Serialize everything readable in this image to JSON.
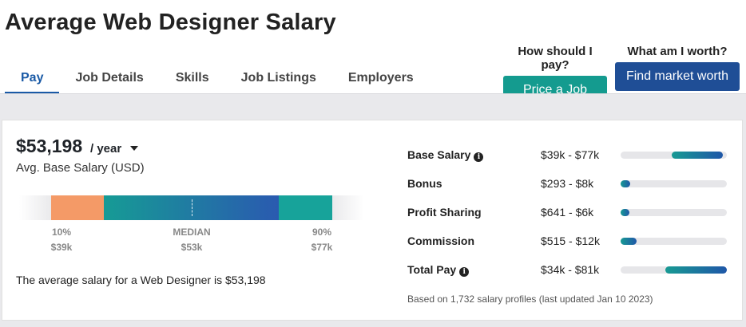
{
  "page_title": "Average Web Designer Salary",
  "tabs": [
    {
      "label": "Pay",
      "active": true
    },
    {
      "label": "Job Details",
      "active": false
    },
    {
      "label": "Skills",
      "active": false
    },
    {
      "label": "Job Listings",
      "active": false
    },
    {
      "label": "Employers",
      "active": false
    }
  ],
  "cta": {
    "price_job": {
      "label": "How should I pay?",
      "button": "Price a Job",
      "color": "#149b8f"
    },
    "market_worth": {
      "label": "What am I worth?",
      "button": "Find market worth",
      "color": "#1f4e96"
    }
  },
  "salary": {
    "amount": "$53,198",
    "period": "/ year",
    "period_dropdown_icon": "caret-down-icon",
    "caption": "Avg. Base Salary (USD)",
    "range": {
      "low": {
        "label": "10%",
        "value": "$39k",
        "color": "#f49a67"
      },
      "median": {
        "label": "MEDIAN",
        "value": "$53k"
      },
      "high": {
        "label": "90%",
        "value": "$77k",
        "color": "#17a39a"
      }
    },
    "summary": "The average salary for a Web Designer is $53,198"
  },
  "pay_breakdown": {
    "rows": [
      {
        "name": "Base Salary",
        "has_info": true,
        "range": "$39k - $77k",
        "fill_start": 0.48,
        "fill_end": 0.96
      },
      {
        "name": "Bonus",
        "has_info": false,
        "range": "$293 - $8k",
        "fill_start": 0.0,
        "fill_end": 0.09
      },
      {
        "name": "Profit Sharing",
        "has_info": false,
        "range": "$641 - $6k",
        "fill_start": 0.0,
        "fill_end": 0.08
      },
      {
        "name": "Commission",
        "has_info": false,
        "range": "$515 - $12k",
        "fill_start": 0.0,
        "fill_end": 0.15
      },
      {
        "name": "Total Pay",
        "has_info": true,
        "range": "$34k - $81k",
        "fill_start": 0.42,
        "fill_end": 1.0
      }
    ],
    "info_icon": "info-icon",
    "footnote": "Based on 1,732 salary profiles (last updated Jan 10 2023)"
  }
}
